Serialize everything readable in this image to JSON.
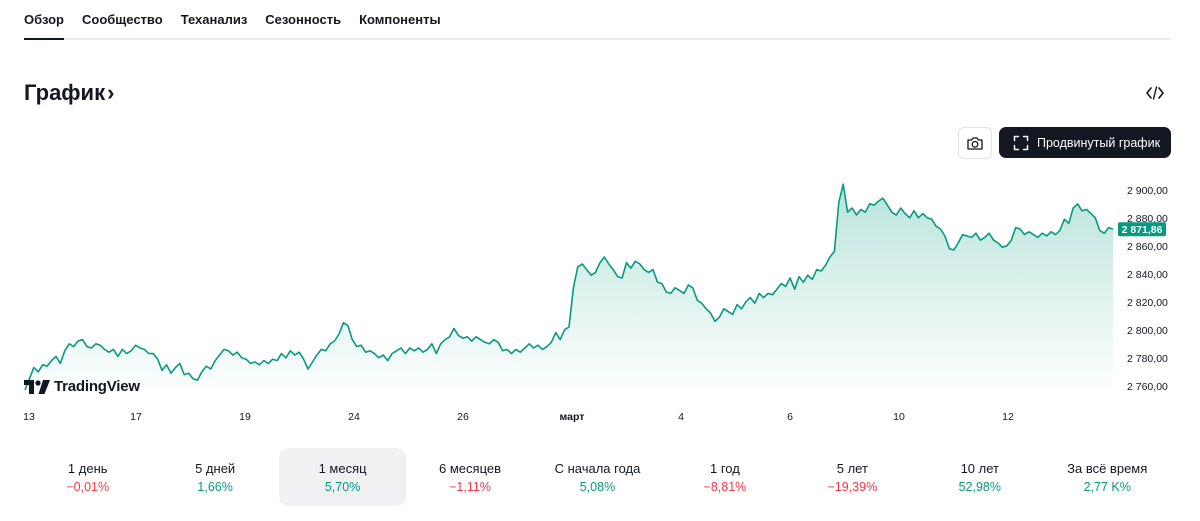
{
  "tabs": [
    {
      "label": "Обзор",
      "active": true
    },
    {
      "label": "Сообщество",
      "active": false
    },
    {
      "label": "Теханализ",
      "active": false
    },
    {
      "label": "Сезонность",
      "active": false
    },
    {
      "label": "Компоненты",
      "active": false
    }
  ],
  "header": {
    "title": "График",
    "chevron": "›",
    "embed_icon": "code-embed-icon"
  },
  "toolbar": {
    "snapshot_icon": "camera-icon",
    "advanced_label": "Продвинутый график",
    "advanced_icon": "fullscreen-icon"
  },
  "logo_text": "TradingView",
  "colors": {
    "line": "#089981",
    "area_top": "#b5e2d8",
    "positive": "#089981",
    "negative": "#f23645"
  },
  "chart_data": {
    "type": "area",
    "x_tick_labels": [
      "13",
      "17",
      "19",
      "24",
      "26",
      "март",
      "4",
      "6",
      "10",
      "12"
    ],
    "y_tick_labels": [
      "2 900,00",
      "2 880,00",
      "2 860,00",
      "2 840,00",
      "2 820,00",
      "2 800,00",
      "2 780,00",
      "2 760,00"
    ],
    "ylim": [
      2752,
      2912
    ],
    "last_value_label": "2 871,86",
    "last_value": 2871.86,
    "series": [
      {
        "values": [
          2757,
          2765,
          2773,
          2770,
          2775,
          2774,
          2778,
          2781,
          2776,
          2785,
          2790,
          2788,
          2792,
          2793,
          2788,
          2787,
          2790,
          2789,
          2786,
          2784,
          2786,
          2781,
          2786,
          2783,
          2785,
          2789,
          2787,
          2786,
          2783,
          2783,
          2779,
          2771,
          2775,
          2769,
          2773,
          2776,
          2768,
          2769,
          2765,
          2764,
          2770,
          2774,
          2772,
          2778,
          2782,
          2786,
          2785,
          2782,
          2784,
          2780,
          2779,
          2776,
          2777,
          2775,
          2778,
          2776,
          2779,
          2778,
          2783,
          2780,
          2785,
          2782,
          2784,
          2779,
          2772,
          2777,
          2782,
          2786,
          2785,
          2790,
          2792,
          2797,
          2805,
          2803,
          2793,
          2788,
          2789,
          2784,
          2785,
          2783,
          2780,
          2782,
          2778,
          2783,
          2785,
          2787,
          2783,
          2787,
          2785,
          2787,
          2784,
          2786,
          2790,
          2783,
          2790,
          2793,
          2795,
          2801,
          2796,
          2794,
          2795,
          2792,
          2795,
          2793,
          2791,
          2790,
          2793,
          2791,
          2785,
          2786,
          2783,
          2786,
          2784,
          2787,
          2790,
          2787,
          2789,
          2786,
          2788,
          2791,
          2798,
          2793,
          2800,
          2802,
          2830,
          2845,
          2847,
          2843,
          2839,
          2841,
          2848,
          2852,
          2847,
          2843,
          2838,
          2837,
          2848,
          2844,
          2849,
          2847,
          2843,
          2841,
          2843,
          2834,
          2833,
          2827,
          2826,
          2830,
          2828,
          2826,
          2832,
          2830,
          2821,
          2819,
          2815,
          2812,
          2806,
          2809,
          2815,
          2813,
          2811,
          2818,
          2815,
          2820,
          2823,
          2819,
          2826,
          2823,
          2826,
          2825,
          2829,
          2833,
          2831,
          2837,
          2829,
          2838,
          2834,
          2839,
          2836,
          2843,
          2842,
          2846,
          2852,
          2856,
          2891,
          2904,
          2884,
          2887,
          2882,
          2886,
          2884,
          2890,
          2889,
          2892,
          2894,
          2889,
          2884,
          2882,
          2887,
          2883,
          2880,
          2885,
          2880,
          2883,
          2880,
          2879,
          2874,
          2872,
          2867,
          2858,
          2857,
          2862,
          2868,
          2867,
          2866,
          2869,
          2864,
          2866,
          2869,
          2864,
          2862,
          2859,
          2860,
          2864,
          2873,
          2872,
          2868,
          2870,
          2868,
          2866,
          2869,
          2867,
          2870,
          2868,
          2871,
          2879,
          2876,
          2887,
          2890,
          2885,
          2886,
          2883,
          2880,
          2871,
          2869,
          2873,
          2871.86
        ]
      }
    ],
    "grid": false
  },
  "periods": [
    {
      "label": "1 день",
      "value": "−0,01%",
      "sign": "neg",
      "active": false
    },
    {
      "label": "5 дней",
      "value": "1,66%",
      "sign": "pos",
      "active": false
    },
    {
      "label": "1 месяц",
      "value": "5,70%",
      "sign": "pos",
      "active": true
    },
    {
      "label": "6 месяцев",
      "value": "−1,11%",
      "sign": "neg",
      "active": false
    },
    {
      "label": "С начала года",
      "value": "5,08%",
      "sign": "pos",
      "active": false
    },
    {
      "label": "1 год",
      "value": "−8,81%",
      "sign": "neg",
      "active": false
    },
    {
      "label": "5 лет",
      "value": "−19,39%",
      "sign": "neg",
      "active": false
    },
    {
      "label": "10 лет",
      "value": "52,98%",
      "sign": "pos",
      "active": false
    },
    {
      "label": "За всё время",
      "value": "2,77 K%",
      "sign": "pos",
      "active": false
    }
  ]
}
